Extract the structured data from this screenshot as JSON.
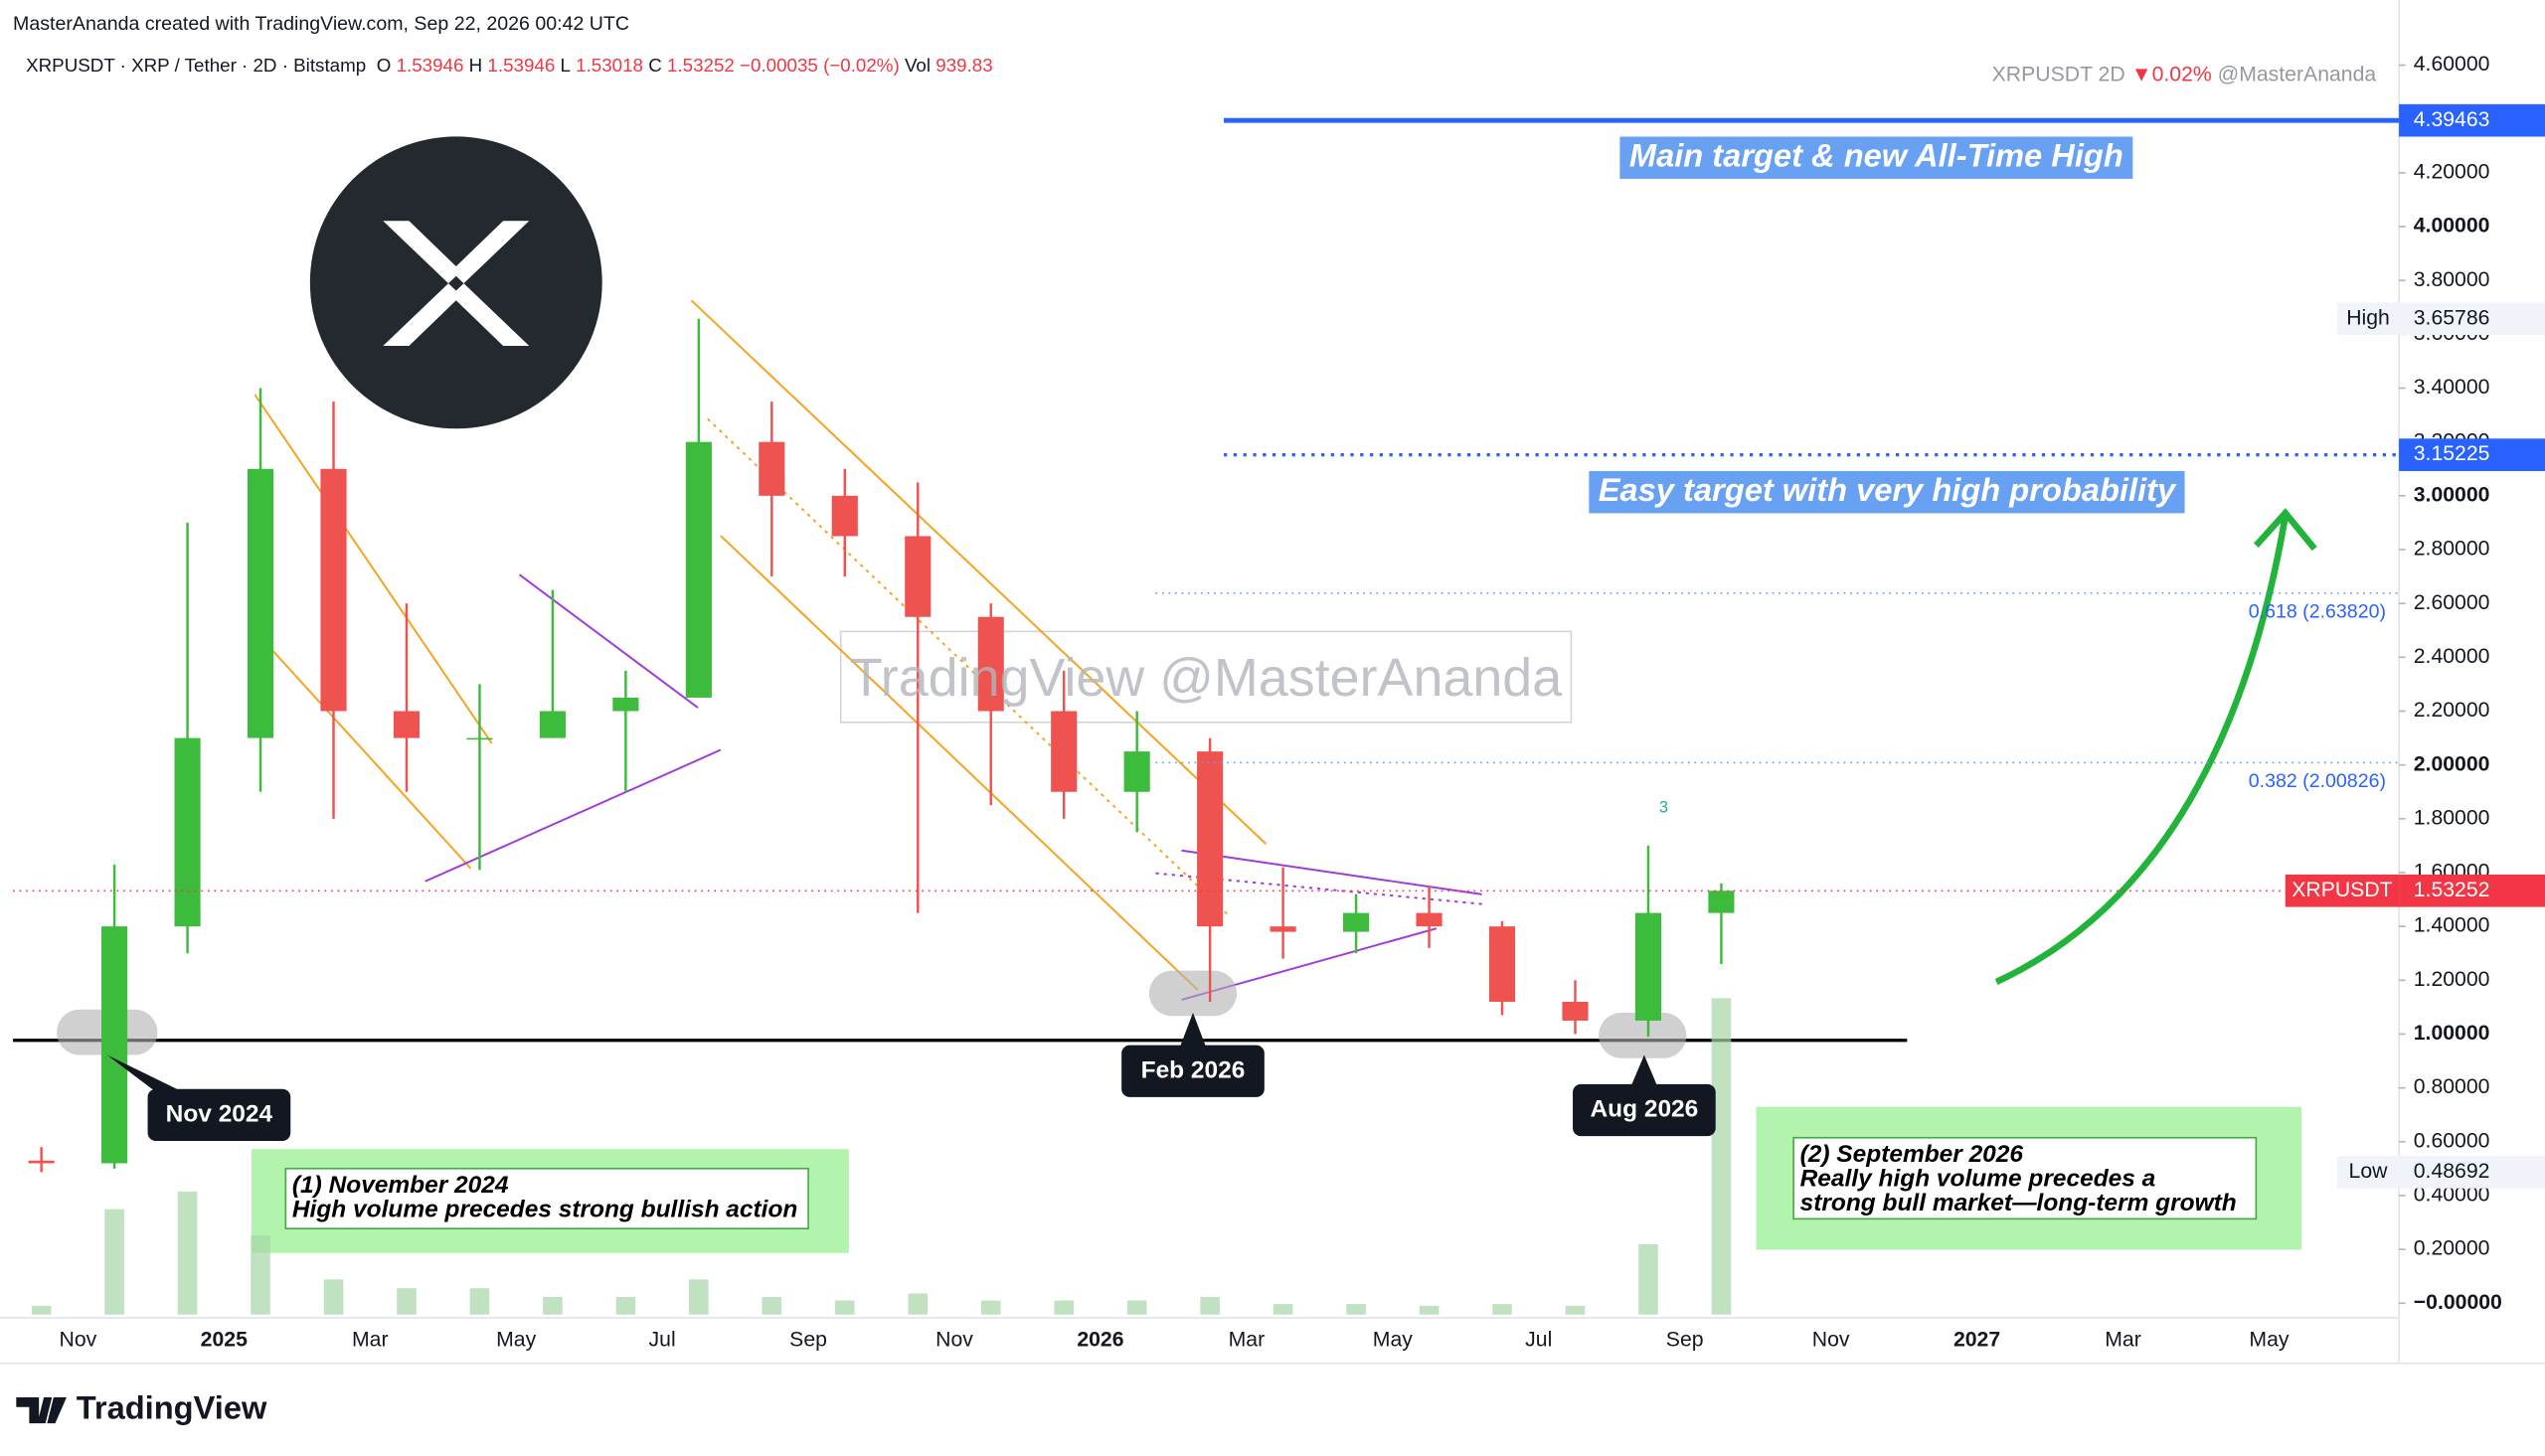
{
  "header": {
    "credit": "MasterAnanda created with TradingView.com, Sep 22, 2026 00:42 UTC",
    "symbol": "XRPUSDT · XRP / Tether · 2D · Bitstamp",
    "ohlc": [
      {
        "label": "O",
        "value": 1.53946
      },
      {
        "label": "H",
        "value": 1.53946
      },
      {
        "label": "L",
        "value": 1.53018
      },
      {
        "label": "C",
        "value": 1.53252
      }
    ],
    "change": "−0.00035 (−0.02%)",
    "volume_label": "Vol",
    "volume": 939.83,
    "top_right": {
      "symbol": "XRPUSDT 2D",
      "change": "▼0.02%",
      "author": "@MasterAnanda"
    },
    "watermark": "TradingView @MasterAnanda"
  },
  "chart_data": {
    "type": "candlestick",
    "categories": [
      null,
      "Nov",
      null,
      "2025",
      null,
      "Mar",
      null,
      "May",
      null,
      "Jul",
      null,
      "Sep",
      null,
      "Nov",
      null,
      "2026",
      null,
      "Mar",
      null,
      "May",
      null,
      "Jul",
      null,
      "Sep",
      null,
      "Nov",
      null,
      "2027",
      null,
      "Mar",
      null,
      "May"
    ],
    "open": [
      0.53,
      0.52,
      1.4,
      2.1,
      3.1,
      2.2,
      2.1,
      2.1,
      2.2,
      2.25,
      3.2,
      3.0,
      2.85,
      2.55,
      2.2,
      1.9,
      2.05,
      1.4,
      1.38,
      1.45,
      1.4,
      1.12,
      1.05,
      1.45,
      null,
      null,
      null,
      null,
      null,
      null,
      null,
      null
    ],
    "high": [
      0.58,
      1.63,
      2.9,
      3.4,
      3.35,
      2.6,
      2.3,
      2.65,
      2.35,
      3.65786,
      3.35,
      3.1,
      3.05,
      2.6,
      2.35,
      2.2,
      2.1,
      1.62,
      1.52,
      1.55,
      1.42,
      1.2,
      1.7,
      1.56,
      null,
      null,
      null,
      null,
      null,
      null,
      null,
      null
    ],
    "low": [
      0.48692,
      0.5,
      1.3,
      1.9,
      1.8,
      1.9,
      1.61,
      2.1,
      1.9,
      2.25,
      2.7,
      2.7,
      1.45,
      1.85,
      1.8,
      1.75,
      1.12,
      1.28,
      1.3,
      1.32,
      1.07,
      1.0,
      0.99,
      1.26,
      null,
      null,
      null,
      null,
      null,
      null,
      null,
      null
    ],
    "close": [
      0.52,
      1.4,
      2.1,
      3.1,
      2.2,
      2.1,
      2.1,
      2.2,
      2.25,
      3.2,
      3.0,
      2.85,
      2.55,
      2.2,
      1.9,
      2.05,
      1.4,
      1.38,
      1.45,
      1.4,
      1.12,
      1.05,
      1.45,
      1.53252,
      null,
      null,
      null,
      null,
      null,
      null,
      null,
      null
    ],
    "volume": [
      5,
      60,
      70,
      45,
      20,
      15,
      15,
      10,
      10,
      20,
      10,
      8,
      12,
      8,
      8,
      8,
      10,
      6,
      6,
      5,
      6,
      5,
      40,
      180,
      null,
      null,
      null,
      null,
      null,
      null,
      null,
      null
    ],
    "up_color": "#3dbb3d",
    "down_color": "#ef5350",
    "volume_color": "#a5d6a7",
    "ylim": [
      0,
      4.6
    ],
    "yticks": [
      {
        "value": 0,
        "label": "−0.00000"
      },
      {
        "value": 0.2,
        "label": "0.20000"
      },
      {
        "value": 0.4,
        "label": "0.40000"
      },
      {
        "value": 0.6,
        "label": "0.60000"
      },
      {
        "value": 0.8,
        "label": "0.80000"
      },
      {
        "value": 1,
        "label": "1.00000"
      },
      {
        "value": 1.2,
        "label": "1.20000"
      },
      {
        "value": 1.4,
        "label": "1.40000"
      },
      {
        "value": 1.6,
        "label": "1.60000"
      },
      {
        "value": 1.8,
        "label": "1.80000"
      },
      {
        "value": 2,
        "label": "2.00000"
      },
      {
        "value": 2.2,
        "label": "2.20000"
      },
      {
        "value": 2.4,
        "label": "2.40000"
      },
      {
        "value": 2.6,
        "label": "2.60000"
      },
      {
        "value": 2.8,
        "label": "2.80000"
      },
      {
        "value": 3,
        "label": "3.00000"
      },
      {
        "value": 3.2,
        "label": "3.20000"
      },
      {
        "value": 3.4,
        "label": "3.40000"
      },
      {
        "value": 3.6,
        "label": "3.60000"
      },
      {
        "value": 3.8,
        "label": "3.80000"
      },
      {
        "value": 4,
        "label": "4.00000"
      },
      {
        "value": 4.2,
        "label": "4.20000"
      },
      {
        "value": 4.4,
        "label": "4.40000"
      },
      {
        "value": 4.6,
        "label": "4.60000"
      }
    ],
    "targets": [
      {
        "value": 4.39463,
        "label": "Main target & new All-Time High",
        "color": "#2962ff",
        "style": "solid"
      },
      {
        "value": 3.15225,
        "label": "Easy target with very high probability",
        "color": "#2962ff",
        "style": "dotted"
      }
    ],
    "fib_levels": [
      {
        "value": 2.6382,
        "label": "0.618 (2.63820)"
      },
      {
        "value": 2.00826,
        "label": "0.382 (2.00826)"
      }
    ],
    "extremes": [
      {
        "label": "High",
        "value": 3.65786
      },
      {
        "label": "Low",
        "value": 0.48692
      }
    ],
    "last_price": {
      "name": "XRPUSDT",
      "value": 1.53252,
      "color": "#f23645"
    },
    "callouts": [
      "Nov 2024",
      "Feb 2026",
      "Aug 2026"
    ],
    "wave_label": "3",
    "notes": [
      {
        "lines": [
          "(1) November 2024",
          "High volume precedes strong bullish action"
        ]
      },
      {
        "lines": [
          "(2) September 2026",
          "Really high volume precedes a",
          "strong bull market—long-term growth"
        ]
      }
    ]
  },
  "footer": {
    "brand": "TradingView"
  }
}
